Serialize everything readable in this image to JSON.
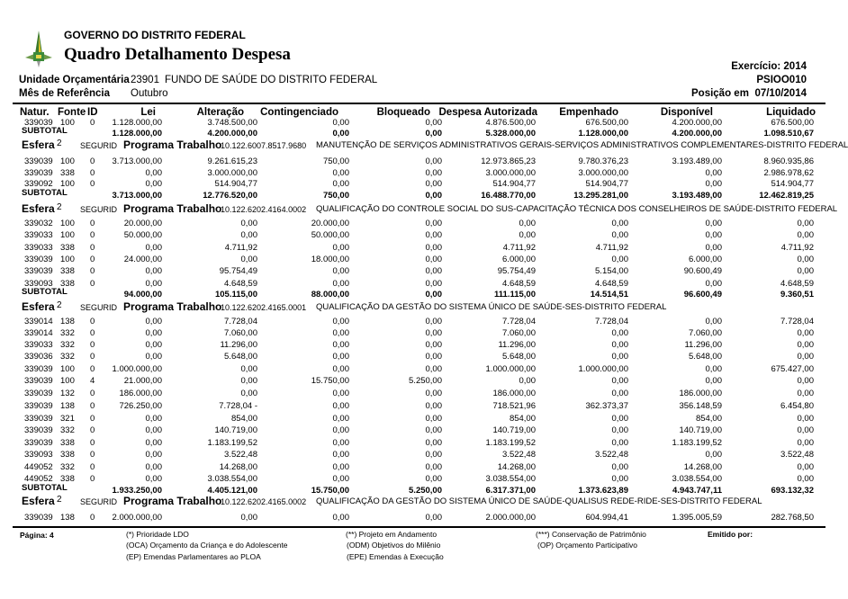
{
  "header": {
    "org": "GOVERNO DO DISTRITO FEDERAL",
    "title": "Quadro Detalhamento Despesa",
    "unidade_label": "Unidade Orçamentária",
    "unidade_code": "23901",
    "unidade_name": "FUNDO DE SAÚDE DO DISTRITO FEDERAL",
    "mes_label": "Mês de Referência",
    "mes_value": "Outubro",
    "exercicio": "Exercício: 2014",
    "report_code": "PSIOO010",
    "posicao_label": "Posição em",
    "posicao_date": "07/10/2014",
    "logo_icon": "gdf-logo-icon"
  },
  "columns": [
    "Natur.",
    "Fonte",
    "ID",
    "Lei",
    "Alteração",
    "Contingenciado",
    "Bloqueado",
    "Despesa Autorizada",
    "Empenhado",
    "Disponível",
    "Liquidado"
  ],
  "esfera_label": "Esfera",
  "segurid_label": "SEGURID",
  "programa_label": "Programa Trabalho",
  "subtotal_label": "SUBTOTAL",
  "groups": [
    {
      "esfera": null,
      "rows": [
        [
          "339039",
          "100",
          "0",
          "1.128.000,00",
          "3.748.500,00",
          "0,00",
          "0,00",
          "4.876.500,00",
          "676.500,00",
          "4.200.000,00",
          "676.500,00"
        ]
      ],
      "subtotal": [
        "1.128.000,00",
        "4.200.000,00",
        "0,00",
        "0,00",
        "5.328.000,00",
        "1.128.000,00",
        "4.200.000,00",
        "1.098.510,67"
      ]
    },
    {
      "esfera": {
        "num": "2",
        "code": "10.122.6007.8517.9680",
        "desc": "MANUTENÇÃO DE SERVIÇOS ADMINISTRATIVOS GERAIS-SERVIÇOS ADMINISTRATIVOS COMPLEMENTARES-DISTRITO FEDERAL"
      },
      "rows": [
        [
          "339039",
          "100",
          "0",
          "3.713.000,00",
          "9.261.615,23",
          "750,00",
          "0,00",
          "12.973.865,23",
          "9.780.376,23",
          "3.193.489,00",
          "8.960.935,86"
        ],
        [
          "339039",
          "338",
          "0",
          "0,00",
          "3.000.000,00",
          "0,00",
          "0,00",
          "3.000.000,00",
          "3.000.000,00",
          "0,00",
          "2.986.978,62"
        ],
        [
          "339092",
          "100",
          "0",
          "0,00",
          "514.904,77",
          "0,00",
          "0,00",
          "514.904,77",
          "514.904,77",
          "0,00",
          "514.904,77"
        ]
      ],
      "subtotal": [
        "3.713.000,00",
        "12.776.520,00",
        "750,00",
        "0,00",
        "16.488.770,00",
        "13.295.281,00",
        "3.193.489,00",
        "12.462.819,25"
      ]
    },
    {
      "esfera": {
        "num": "2",
        "code": "10.122.6202.4164.0002",
        "desc": "QUALIFICAÇÃO DO CONTROLE SOCIAL DO SUS-CAPACITAÇÃO TÉCNICA DOS CONSELHEIROS DE SAÚDE-DISTRITO FEDERAL"
      },
      "rows": [
        [
          "339032",
          "100",
          "0",
          "20.000,00",
          "0,00",
          "20.000,00",
          "0,00",
          "0,00",
          "0,00",
          "0,00",
          "0,00"
        ],
        [
          "339033",
          "100",
          "0",
          "50.000,00",
          "0,00",
          "50.000,00",
          "0,00",
          "0,00",
          "0,00",
          "0,00",
          "0,00"
        ],
        [
          "339033",
          "338",
          "0",
          "0,00",
          "4.711,92",
          "0,00",
          "0,00",
          "4.711,92",
          "4.711,92",
          "0,00",
          "4.711,92"
        ],
        [
          "339039",
          "100",
          "0",
          "24.000,00",
          "0,00",
          "18.000,00",
          "0,00",
          "6.000,00",
          "0,00",
          "6.000,00",
          "0,00"
        ],
        [
          "339039",
          "338",
          "0",
          "0,00",
          "95.754,49",
          "0,00",
          "0,00",
          "95.754,49",
          "5.154,00",
          "90.600,49",
          "0,00"
        ],
        [
          "339093",
          "338",
          "0",
          "0,00",
          "4.648,59",
          "0,00",
          "0,00",
          "4.648,59",
          "4.648,59",
          "0,00",
          "4.648,59"
        ]
      ],
      "subtotal": [
        "94.000,00",
        "105.115,00",
        "88.000,00",
        "0,00",
        "111.115,00",
        "14.514,51",
        "96.600,49",
        "9.360,51"
      ]
    },
    {
      "esfera": {
        "num": "2",
        "code": "10.122.6202.4165.0001",
        "desc": "QUALIFICAÇÃO DA GESTÃO DO SISTEMA ÚNICO DE SAÚDE-SES-DISTRITO FEDERAL"
      },
      "rows": [
        [
          "339014",
          "138",
          "0",
          "0,00",
          "7.728,04",
          "0,00",
          "0,00",
          "7.728,04",
          "7.728,04",
          "0,00",
          "7.728,04"
        ],
        [
          "339014",
          "332",
          "0",
          "0,00",
          "7.060,00",
          "0,00",
          "0,00",
          "7.060,00",
          "0,00",
          "7.060,00",
          "0,00"
        ],
        [
          "339033",
          "332",
          "0",
          "0,00",
          "11.296,00",
          "0,00",
          "0,00",
          "11.296,00",
          "0,00",
          "11.296,00",
          "0,00"
        ],
        [
          "339036",
          "332",
          "0",
          "0,00",
          "5.648,00",
          "0,00",
          "0,00",
          "5.648,00",
          "0,00",
          "5.648,00",
          "0,00"
        ],
        [
          "339039",
          "100",
          "0",
          "1.000.000,00",
          "0,00",
          "0,00",
          "0,00",
          "1.000.000,00",
          "1.000.000,00",
          "0,00",
          "675.427,00"
        ],
        [
          "339039",
          "100",
          "4",
          "21.000,00",
          "0,00",
          "15.750,00",
          "5.250,00",
          "0,00",
          "0,00",
          "0,00",
          "0,00"
        ],
        [
          "339039",
          "132",
          "0",
          "186.000,00",
          "0,00",
          "0,00",
          "0,00",
          "186.000,00",
          "0,00",
          "186.000,00",
          "0,00"
        ],
        [
          "339039",
          "138",
          "0",
          "726.250,00",
          "7.728,04 -",
          "0,00",
          "0,00",
          "718.521,96",
          "362.373,37",
          "356.148,59",
          "6.454,80"
        ],
        [
          "339039",
          "321",
          "0",
          "0,00",
          "854,00",
          "0,00",
          "0,00",
          "854,00",
          "0,00",
          "854,00",
          "0,00"
        ],
        [
          "339039",
          "332",
          "0",
          "0,00",
          "140.719,00",
          "0,00",
          "0,00",
          "140.719,00",
          "0,00",
          "140.719,00",
          "0,00"
        ],
        [
          "339039",
          "338",
          "0",
          "0,00",
          "1.183.199,52",
          "0,00",
          "0,00",
          "1.183.199,52",
          "0,00",
          "1.183.199,52",
          "0,00"
        ],
        [
          "339093",
          "338",
          "0",
          "0,00",
          "3.522,48",
          "0,00",
          "0,00",
          "3.522,48",
          "3.522,48",
          "0,00",
          "3.522,48"
        ],
        [
          "449052",
          "332",
          "0",
          "0,00",
          "14.268,00",
          "0,00",
          "0,00",
          "14.268,00",
          "0,00",
          "14.268,00",
          "0,00"
        ],
        [
          "449052",
          "338",
          "0",
          "0,00",
          "3.038.554,00",
          "0,00",
          "0,00",
          "3.038.554,00",
          "0,00",
          "3.038.554,00",
          "0,00"
        ]
      ],
      "subtotal": [
        "1.933.250,00",
        "4.405.121,00",
        "15.750,00",
        "5.250,00",
        "6.317.371,00",
        "1.373.623,89",
        "4.943.747,11",
        "693.132,32"
      ]
    },
    {
      "esfera": {
        "num": "2",
        "code": "10.122.6202.4165.0002",
        "desc": "QUALIFICAÇÃO DA GESTÃO DO SISTEMA ÚNICO DE SAÚDE-QUALISUS REDE-RIDE-SES-DISTRITO FEDERAL"
      },
      "rows": [
        [
          "339039",
          "138",
          "0",
          "2.000.000,00",
          "0,00",
          "0,00",
          "0,00",
          "2.000.000,00",
          "604.994,41",
          "1.395.005,59",
          "282.768,50"
        ]
      ],
      "subtotal": null
    }
  ],
  "footer": {
    "page": "Página: 4",
    "notes": [
      "(*) Prioridade LDO",
      "(OCA)  Orçamento da Criança e do Adolescente",
      "(EP)  Emendas Parlamentares ao PLOA",
      "(**)  Projeto em Andamento",
      "(ODM) Objetivos do Milênio",
      "(EPE) Emendas à Execução",
      "(***)  Conservação de Patrimônio",
      "(OP) Orçamento Participativo"
    ],
    "emitido": "Emitido por:"
  }
}
